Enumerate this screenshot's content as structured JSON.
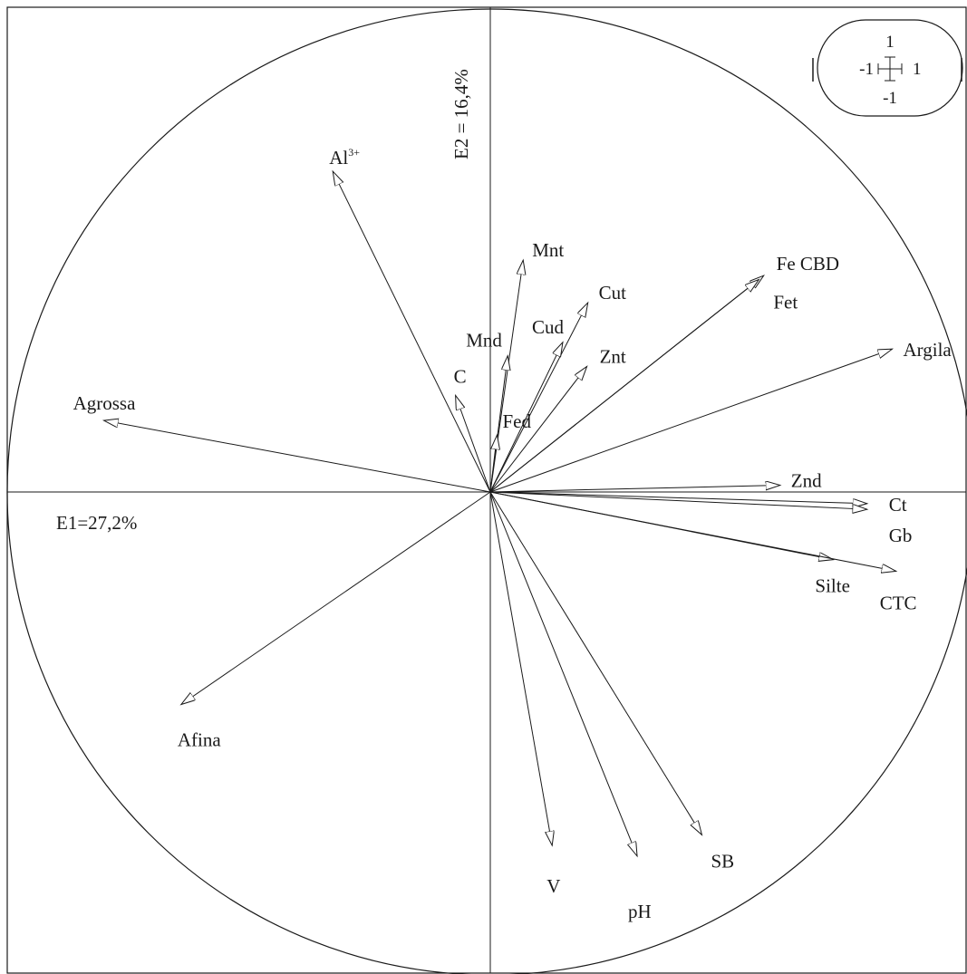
{
  "chart_data": {
    "type": "scatter",
    "subtype": "correlation-circle-biplot",
    "title": "",
    "xlabel": "E1=27,2%",
    "ylabel": "E2 = 16,4%",
    "xlim": [
      -1,
      1
    ],
    "ylim": [
      -1,
      1
    ],
    "grid": false,
    "legend": "none",
    "scale_box": {
      "top": "1",
      "bottom": "-1",
      "left": "-1",
      "right": "1"
    },
    "vectors": [
      {
        "name": "Al",
        "sup": "3+",
        "x": -0.326,
        "y": 0.664
      },
      {
        "name": "Mnt",
        "x": 0.068,
        "y": 0.48
      },
      {
        "name": "Cut",
        "x": 0.202,
        "y": 0.392
      },
      {
        "name": "Cud",
        "x": 0.15,
        "y": 0.31
      },
      {
        "name": "Mnd",
        "x": 0.036,
        "y": 0.282
      },
      {
        "name": "Znt",
        "x": 0.2,
        "y": 0.26
      },
      {
        "name": "C",
        "x": -0.072,
        "y": 0.2
      },
      {
        "name": "Fed",
        "x": 0.014,
        "y": 0.118
      },
      {
        "name": "Fe CBD",
        "x": 0.566,
        "y": 0.448
      },
      {
        "name": "Fet",
        "x": 0.556,
        "y": 0.44
      },
      {
        "name": "Argila",
        "x": 0.832,
        "y": 0.296
      },
      {
        "name": "Agrossa",
        "x": -0.8,
        "y": 0.148
      },
      {
        "name": "Znd",
        "x": 0.6,
        "y": 0.014
      },
      {
        "name": "Ct",
        "x": 0.78,
        "y": -0.024
      },
      {
        "name": "Gb",
        "x": 0.78,
        "y": -0.036
      },
      {
        "name": "Silte",
        "x": 0.71,
        "y": -0.14
      },
      {
        "name": "CTC",
        "x": 0.84,
        "y": -0.164
      },
      {
        "name": "Afina",
        "x": -0.64,
        "y": -0.44
      },
      {
        "name": "V",
        "x": 0.128,
        "y": -0.732
      },
      {
        "name": "pH",
        "x": 0.304,
        "y": -0.754
      },
      {
        "name": "SB",
        "x": 0.438,
        "y": -0.71
      }
    ]
  }
}
